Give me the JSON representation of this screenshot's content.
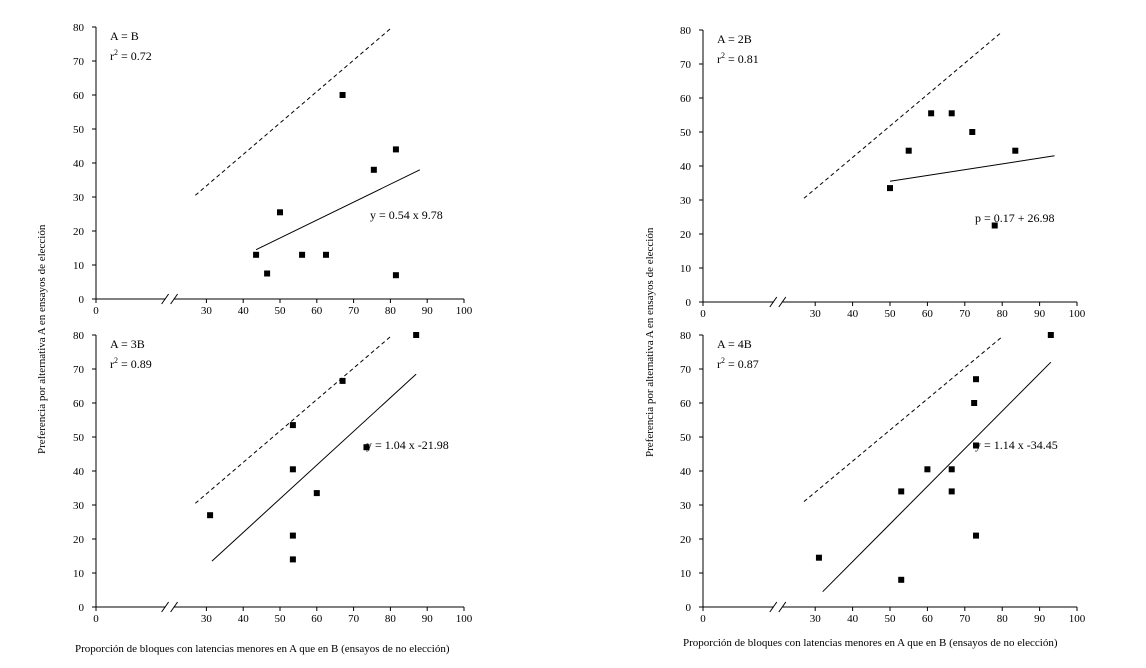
{
  "figure": {
    "y_axis_label_left": "Preferencia por alternativa A en ensayos de elección",
    "y_axis_label_right": "Preferencia por alternativa A en ensayos de elección",
    "x_axis_label_left": "Proporción de bloques con latencias menores en A que en B (ensayos de no elección)",
    "x_axis_label_right": "Proporción de bloques con latencias menores en A que en B (ensayos de no elección)"
  },
  "chart_data": [
    {
      "type": "scatter",
      "panel": "top-left",
      "title": "A = B",
      "r2_text": "= 0.72",
      "equation": "y = 0.54 x 9.78",
      "xlim": [
        0,
        100
      ],
      "ylim": [
        0,
        80
      ],
      "xticks": [
        0,
        30,
        40,
        50,
        60,
        70,
        80,
        90,
        100
      ],
      "yticks": [
        0,
        10,
        20,
        30,
        40,
        50,
        60,
        70,
        80
      ],
      "axis_break": true,
      "points": [
        [
          43.5,
          13
        ],
        [
          46.5,
          7.5
        ],
        [
          50,
          25.5
        ],
        [
          56,
          13
        ],
        [
          62.5,
          13
        ],
        [
          67,
          60
        ],
        [
          75.5,
          38
        ],
        [
          81.5,
          44
        ],
        [
          81.5,
          7
        ]
      ],
      "fit_line": [
        [
          43.5,
          14.5
        ],
        [
          88,
          38
        ]
      ],
      "diagonal": [
        [
          27,
          30.5
        ],
        [
          80,
          79.5
        ]
      ]
    },
    {
      "type": "scatter",
      "panel": "top-right",
      "title": "A = 2B",
      "r2_text": "= 0.81",
      "equation": "p = 0.17 + 26.98",
      "xlim": [
        0,
        100
      ],
      "ylim": [
        0,
        80
      ],
      "xticks": [
        0,
        30,
        40,
        50,
        60,
        70,
        80,
        90,
        100
      ],
      "yticks": [
        0,
        10,
        20,
        30,
        40,
        50,
        60,
        70,
        80
      ],
      "axis_break": true,
      "points": [
        [
          50,
          33.5
        ],
        [
          55,
          44.5
        ],
        [
          61,
          55.5
        ],
        [
          66.5,
          55.5
        ],
        [
          72,
          50
        ],
        [
          78,
          22.5
        ],
        [
          83.5,
          44.5
        ]
      ],
      "fit_line": [
        [
          50,
          35.5
        ],
        [
          94,
          43
        ]
      ],
      "diagonal": [
        [
          27,
          30.5
        ],
        [
          80,
          79.5
        ]
      ]
    },
    {
      "type": "scatter",
      "panel": "bottom-left",
      "title": "A = 3B",
      "r2_text": "= 0.89",
      "equation": "y = 1.04 x -21.98",
      "xlim": [
        0,
        100
      ],
      "ylim": [
        0,
        80
      ],
      "xticks": [
        0,
        30,
        40,
        50,
        60,
        70,
        80,
        90,
        100
      ],
      "yticks": [
        0,
        10,
        20,
        30,
        40,
        50,
        60,
        70,
        80
      ],
      "axis_break": true,
      "points": [
        [
          31,
          27
        ],
        [
          53.5,
          53.5
        ],
        [
          53.5,
          40.5
        ],
        [
          53.5,
          21
        ],
        [
          53.5,
          14
        ],
        [
          60,
          33.5
        ],
        [
          67,
          66.5
        ],
        [
          73.5,
          47
        ],
        [
          87,
          80
        ]
      ],
      "fit_line": [
        [
          31.5,
          13.5
        ],
        [
          87,
          68.5
        ]
      ],
      "diagonal": [
        [
          27,
          30.5
        ],
        [
          80,
          79.5
        ]
      ]
    },
    {
      "type": "scatter",
      "panel": "bottom-right",
      "title": "A = 4B",
      "r2_text": "= 0.87",
      "equation": "y = 1.14 x -34.45",
      "xlim": [
        0,
        100
      ],
      "ylim": [
        0,
        80
      ],
      "xticks": [
        0,
        30,
        40,
        50,
        60,
        70,
        80,
        90,
        100
      ],
      "yticks": [
        0,
        10,
        20,
        30,
        40,
        50,
        60,
        70,
        80
      ],
      "axis_break": true,
      "points": [
        [
          31,
          14.5
        ],
        [
          53,
          34
        ],
        [
          53,
          8
        ],
        [
          60,
          40.5
        ],
        [
          66.5,
          40.5
        ],
        [
          66.5,
          34
        ],
        [
          72.5,
          60
        ],
        [
          73,
          67
        ],
        [
          73,
          47.5
        ],
        [
          73,
          21
        ],
        [
          93,
          80
        ]
      ],
      "fit_line": [
        [
          32,
          4.5
        ],
        [
          93,
          72
        ]
      ],
      "diagonal": [
        [
          27,
          31
        ],
        [
          80,
          79.5
        ]
      ]
    }
  ]
}
